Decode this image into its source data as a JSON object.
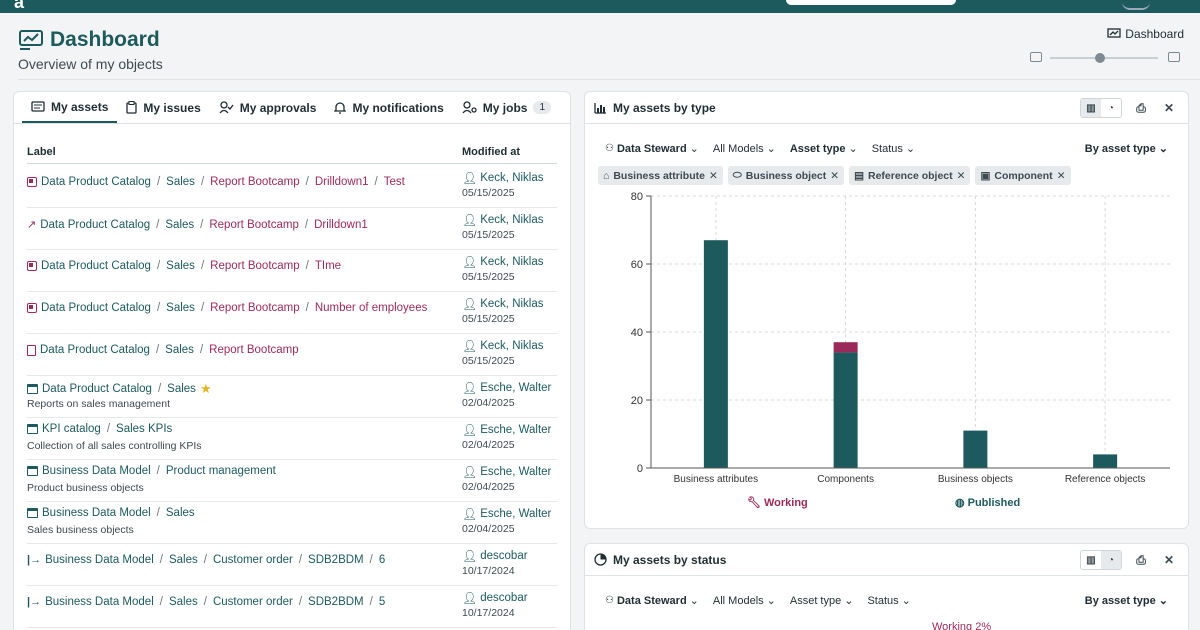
{
  "page": {
    "title": "Dashboard",
    "subtitle": "Overview of my objects",
    "breadcrumb": "Dashboard"
  },
  "tabs": [
    {
      "label": "My assets",
      "icon": "card-icon",
      "active": true
    },
    {
      "label": "My issues",
      "icon": "clipboard-icon"
    },
    {
      "label": "My approvals",
      "icon": "user-check-icon"
    },
    {
      "label": "My notifications",
      "icon": "bell-icon"
    },
    {
      "label": "My jobs",
      "icon": "user-gear-icon",
      "count": "1"
    }
  ],
  "table": {
    "col_label": "Label",
    "col_modified": "Modified at",
    "rows": [
      {
        "icon": "report-icon",
        "segments": [
          "Data Product Catalog",
          "Sales",
          "Report Bootcamp",
          "Drilldown1",
          "Test"
        ],
        "accent_from": 2,
        "owner": "Keck, Niklas",
        "date": "05/15/2025"
      },
      {
        "icon": "line-chart-icon",
        "segments": [
          "Data Product Catalog",
          "Sales",
          "Report Bootcamp",
          "Drilldown1"
        ],
        "accent_from": 2,
        "owner": "Keck, Niklas",
        "date": "05/15/2025"
      },
      {
        "icon": "report-icon",
        "segments": [
          "Data Product Catalog",
          "Sales",
          "Report Bootcamp",
          "TIme"
        ],
        "accent_from": 2,
        "owner": "Keck, Niklas",
        "date": "05/15/2025"
      },
      {
        "icon": "report-icon",
        "segments": [
          "Data Product Catalog",
          "Sales",
          "Report Bootcamp",
          "Number of employees"
        ],
        "accent_from": 2,
        "owner": "Keck, Niklas",
        "date": "05/15/2025"
      },
      {
        "icon": "document-icon",
        "segments": [
          "Data Product Catalog",
          "Sales",
          "Report Bootcamp"
        ],
        "accent_from": 2,
        "owner": "Keck, Niklas",
        "date": "05/15/2025"
      },
      {
        "icon": "model-icon",
        "segments": [
          "Data Product Catalog",
          "Sales"
        ],
        "accent_from": 9,
        "star": true,
        "desc": "Reports on sales management",
        "owner": "Esche, Walter",
        "date": "02/04/2025"
      },
      {
        "icon": "model-icon",
        "segments": [
          "KPI catalog",
          "Sales KPIs"
        ],
        "accent_from": 9,
        "desc": "Collection of all sales controlling KPIs",
        "owner": "Esche, Walter",
        "date": "02/04/2025"
      },
      {
        "icon": "model-icon",
        "segments": [
          "Business Data Model",
          "Product management"
        ],
        "accent_from": 9,
        "desc": "Product business objects",
        "owner": "Esche, Walter",
        "date": "02/04/2025"
      },
      {
        "icon": "model-icon",
        "segments": [
          "Business Data Model",
          "Sales"
        ],
        "accent_from": 9,
        "desc": "Sales business objects",
        "owner": "Esche, Walter",
        "date": "02/04/2025"
      },
      {
        "icon": "attribute-link-icon",
        "segments": [
          "Business Data Model",
          "Sales",
          "Customer order",
          "SDB2BDM",
          "6"
        ],
        "accent_from": 9,
        "owner": "descobar",
        "date": "10/17/2024"
      },
      {
        "icon": "attribute-link-icon",
        "segments": [
          "Business Data Model",
          "Sales",
          "Customer order",
          "SDB2BDM",
          "5"
        ],
        "accent_from": 9,
        "owner": "descobar",
        "date": "10/17/2024"
      }
    ]
  },
  "type_card": {
    "title": "My assets by type",
    "filters": [
      {
        "label": "Data Steward",
        "bold": true,
        "icon": "people-icon"
      },
      {
        "label": "All Models"
      },
      {
        "label": "Asset type",
        "bold": true
      },
      {
        "label": "Status"
      }
    ],
    "group_by": "By asset type",
    "chips": [
      {
        "label": "Business attribute",
        "icon": "tag-icon"
      },
      {
        "label": "Business object",
        "icon": "object-icon"
      },
      {
        "label": "Reference object",
        "icon": "list-icon"
      },
      {
        "label": "Component",
        "icon": "component-icon"
      }
    ],
    "legend": {
      "working": "Working",
      "published": "Published"
    }
  },
  "status_card": {
    "title": "My assets by status",
    "filters": [
      {
        "label": "Data Steward",
        "bold": true,
        "icon": "people-icon"
      },
      {
        "label": "All Models"
      },
      {
        "label": "Asset type"
      },
      {
        "label": "Status"
      }
    ],
    "group_by": "By asset type",
    "peek_label": "Working 2%"
  },
  "colors": {
    "published": "#1d5a5e",
    "working": "#9b2a5a"
  },
  "chart_data": {
    "type": "bar",
    "stacked": true,
    "categories": [
      "Business attributes",
      "Components",
      "Business objects",
      "Reference objects"
    ],
    "series": [
      {
        "name": "Published",
        "values": [
          67,
          34,
          11,
          4
        ]
      },
      {
        "name": "Working",
        "values": [
          0,
          3,
          0,
          0
        ]
      }
    ],
    "ylim": [
      0,
      80
    ],
    "yticks": [
      0,
      20,
      40,
      60,
      80
    ],
    "grid": true,
    "legend_position": "bottom"
  }
}
